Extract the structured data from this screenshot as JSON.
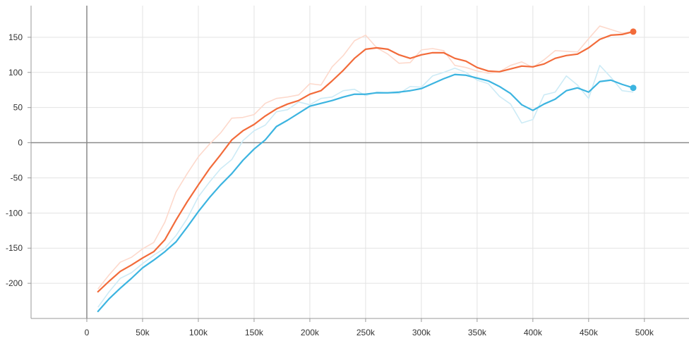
{
  "chart_data": {
    "type": "line",
    "title": "",
    "xlabel": "",
    "ylabel": "",
    "xlim": [
      -50000,
      540000
    ],
    "ylim": [
      -250,
      195
    ],
    "x_ticks": [
      0,
      50000,
      100000,
      150000,
      200000,
      250000,
      300000,
      350000,
      400000,
      450000,
      500000
    ],
    "x_tick_labels": [
      "0",
      "50k",
      "100k",
      "150k",
      "200k",
      "250k",
      "300k",
      "350k",
      "400k",
      "450k",
      "500k"
    ],
    "y_ticks": [
      -200,
      -150,
      -100,
      -50,
      0,
      50,
      100,
      150
    ],
    "y_tick_labels": [
      "-200",
      "-150",
      "-100",
      "-50",
      "0",
      "50",
      "100",
      "150"
    ],
    "grid": true,
    "legend": "none",
    "x": [
      10000,
      20000,
      30000,
      40000,
      50000,
      60000,
      70000,
      80000,
      90000,
      100000,
      110000,
      120000,
      130000,
      140000,
      150000,
      160000,
      170000,
      180000,
      190000,
      200000,
      210000,
      220000,
      230000,
      240000,
      250000,
      260000,
      270000,
      280000,
      290000,
      300000,
      310000,
      320000,
      330000,
      340000,
      350000,
      360000,
      370000,
      380000,
      390000,
      400000,
      410000,
      420000,
      430000,
      440000,
      450000,
      460000,
      470000,
      480000,
      490000
    ],
    "series": [
      {
        "color": "#f26b3a",
        "raw_color": "#fdd9cc",
        "smoothed": [
          -212,
          -197,
          -183,
          -174,
          -164,
          -155,
          -138,
          -110,
          -84,
          -60,
          -37,
          -17,
          4,
          17,
          26,
          38,
          48,
          55,
          60,
          69,
          74,
          88,
          103,
          120,
          133,
          135,
          133,
          125,
          120,
          125,
          128,
          128,
          120,
          116,
          107,
          102,
          101,
          105,
          109,
          108,
          112,
          120,
          124,
          126,
          135,
          147,
          153,
          154,
          158
        ],
        "raw": [
          -208,
          -188,
          -170,
          -163,
          -151,
          -142,
          -113,
          -70,
          -44,
          -20,
          -2,
          14,
          35,
          36,
          40,
          56,
          63,
          65,
          68,
          84,
          82,
          108,
          124,
          145,
          153,
          135,
          126,
          113,
          114,
          132,
          134,
          131,
          110,
          107,
          102,
          99,
          101,
          110,
          115,
          107,
          118,
          131,
          130,
          129,
          148,
          166,
          161,
          156,
          158
        ]
      },
      {
        "color": "#3cb4e0",
        "raw_color": "#cdebf6",
        "smoothed": [
          -240,
          -222,
          -207,
          -193,
          -178,
          -167,
          -155,
          -141,
          -120,
          -98,
          -78,
          -60,
          -44,
          -25,
          -9,
          4,
          23,
          32,
          42,
          52,
          56,
          60,
          65,
          69,
          69,
          71,
          71,
          72,
          74,
          77,
          84,
          91,
          97,
          96,
          92,
          88,
          80,
          70,
          54,
          46,
          55,
          62,
          74,
          78,
          72,
          87,
          89,
          83,
          78
        ],
        "raw": [
          -234,
          -212,
          -193,
          -185,
          -172,
          -160,
          -150,
          -132,
          -108,
          -77,
          -56,
          -37,
          -24,
          3,
          17,
          25,
          44,
          47,
          58,
          54,
          63,
          65,
          74,
          76,
          67,
          72,
          71,
          70,
          80,
          79,
          95,
          100,
          106,
          100,
          89,
          84,
          66,
          55,
          28,
          33,
          68,
          72,
          95,
          82,
          63,
          110,
          93,
          74,
          72
        ]
      }
    ]
  }
}
